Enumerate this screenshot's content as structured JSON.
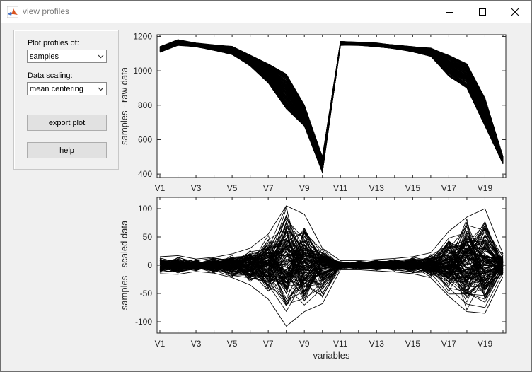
{
  "window": {
    "title": "view profiles"
  },
  "controls": {
    "plot_profiles_label": "Plot profiles of:",
    "plot_profiles_value": "samples",
    "data_scaling_label": "Data scaling:",
    "data_scaling_value": "mean centering",
    "export_label": "export plot",
    "help_label": "help"
  },
  "chart_data": [
    {
      "type": "line",
      "ylabel": "samples - raw data",
      "xlabel": "",
      "categories": [
        "V1",
        "V2",
        "V3",
        "V4",
        "V5",
        "V6",
        "V7",
        "V8",
        "V9",
        "V10",
        "V11",
        "V12",
        "V13",
        "V14",
        "V15",
        "V16",
        "V17",
        "V18",
        "V19",
        "V20"
      ],
      "tick_labels": [
        "V1",
        "V3",
        "V5",
        "V7",
        "V9",
        "V11",
        "V13",
        "V15",
        "V17",
        "V19"
      ],
      "ylim": [
        380,
        1210
      ],
      "yticks": [
        400,
        600,
        800,
        1000,
        1200
      ],
      "series_envelope": {
        "high": [
          1140,
          1180,
          1160,
          1150,
          1140,
          1090,
          1040,
          980,
          800,
          500,
          1170,
          1165,
          1160,
          1150,
          1140,
          1130,
          1090,
          1040,
          840,
          500
        ],
        "mid": [
          1125,
          1165,
          1150,
          1135,
          1120,
          1060,
          990,
          900,
          740,
          440,
          1160,
          1158,
          1152,
          1140,
          1125,
          1110,
          1040,
          980,
          780,
          475
        ],
        "low": [
          1110,
          1150,
          1140,
          1120,
          1095,
          1030,
          930,
          780,
          680,
          410,
          1150,
          1150,
          1140,
          1130,
          1110,
          1085,
          970,
          900,
          680,
          460
        ]
      }
    },
    {
      "type": "line",
      "ylabel": "samples - scaled data",
      "xlabel": "variables",
      "categories": [
        "V1",
        "V2",
        "V3",
        "V4",
        "V5",
        "V6",
        "V7",
        "V8",
        "V9",
        "V10",
        "V11",
        "V12",
        "V13",
        "V14",
        "V15",
        "V16",
        "V17",
        "V18",
        "V19",
        "V20"
      ],
      "tick_labels": [
        "V1",
        "V3",
        "V5",
        "V7",
        "V9",
        "V11",
        "V13",
        "V15",
        "V17",
        "V19"
      ],
      "ylim": [
        -120,
        120
      ],
      "yticks": [
        -100,
        -50,
        0,
        50,
        100
      ],
      "series_envelope": {
        "high": [
          15,
          17,
          11,
          14,
          20,
          30,
          55,
          105,
          90,
          30,
          8,
          8,
          10,
          12,
          15,
          22,
          60,
          85,
          100,
          20
        ],
        "low": [
          -15,
          -16,
          -11,
          -14,
          -22,
          -35,
          -60,
          -108,
          -82,
          -68,
          -8,
          -8,
          -10,
          -12,
          -15,
          -22,
          -55,
          -82,
          -85,
          -20
        ]
      }
    }
  ]
}
